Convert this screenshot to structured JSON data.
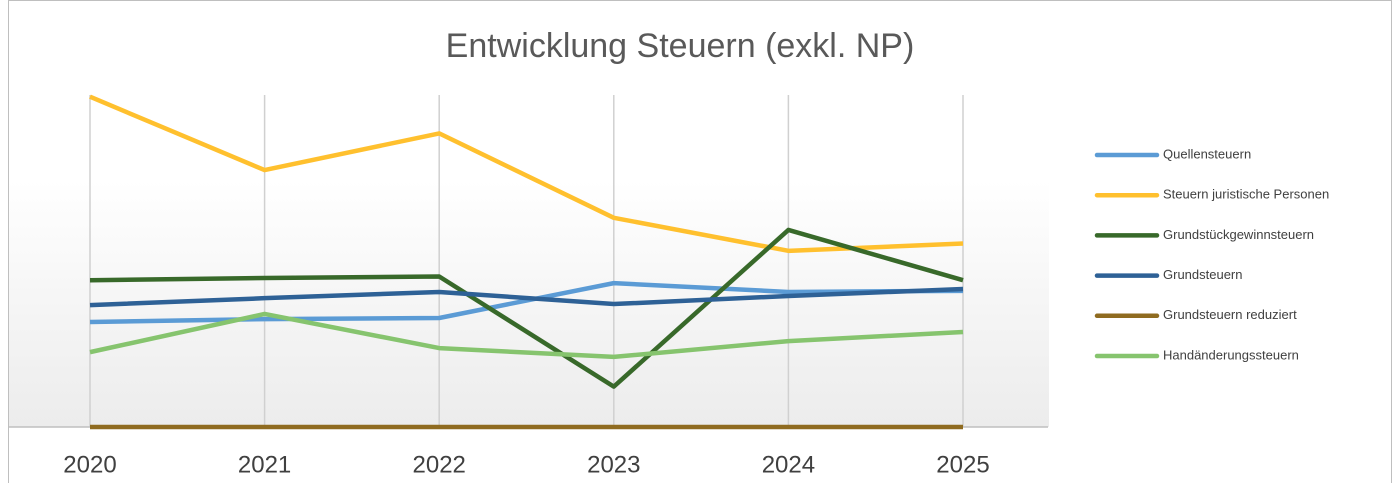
{
  "chart_data": {
    "type": "line",
    "title": "Entwicklung Steuern (exkl. NP)",
    "categories": [
      "2020",
      "2021",
      "2022",
      "2023",
      "2024",
      "2025"
    ],
    "ylim": [
      0,
      100
    ],
    "series": [
      {
        "name": "Quellensteuern",
        "color": "#5b9bd5",
        "values": [
          28.6,
          29.4,
          29.7,
          39.2,
          36.8,
          37.1
        ]
      },
      {
        "name": "Steuern juristische Personen",
        "color": "#ffc02e",
        "values": [
          90,
          70,
          80,
          57,
          48,
          50
        ]
      },
      {
        "name": "Grundstückgewinnsteuern",
        "color": "#38692a",
        "values": [
          40,
          40.6,
          41,
          11,
          53.7,
          40
        ]
      },
      {
        "name": "Grundsteuern",
        "color": "#2e6196",
        "values": [
          33.2,
          35.1,
          36.8,
          33.5,
          35.7,
          37.6
        ]
      },
      {
        "name": "Grundsteuern reduziert",
        "color": "#8f6b20",
        "values": [
          0,
          0,
          0,
          0,
          0,
          0
        ]
      },
      {
        "name": "Handänderungssteuern",
        "color": "#86c46e",
        "values": [
          20.4,
          30.8,
          21.5,
          19.1,
          23.4,
          25.9
        ]
      }
    ]
  }
}
